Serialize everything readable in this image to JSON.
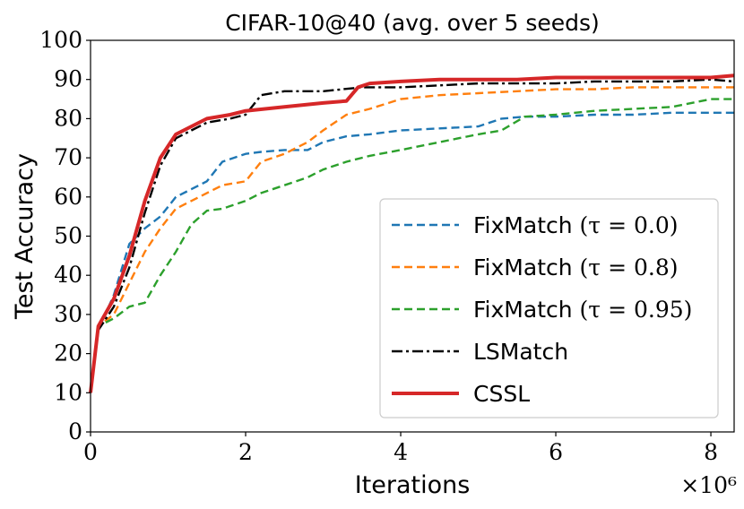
{
  "chart_data": {
    "type": "line",
    "title": "CIFAR-10@40 (avg. over 5 seeds)",
    "xlabel": "Iterations",
    "ylabel": "Test Accuracy",
    "x_multiplier_label": "×10⁶",
    "xlim": [
      0,
      8.3
    ],
    "ylim": [
      0,
      100
    ],
    "xticks": [
      0,
      2,
      4,
      6,
      8
    ],
    "yticks": [
      0,
      10,
      20,
      30,
      40,
      50,
      60,
      70,
      80,
      90,
      100
    ],
    "grid": false,
    "legend_position": "lower-right",
    "series": [
      {
        "name": "FixMatch (τ = 0.0)",
        "label_text": "FixMatch",
        "label_math": "(τ = 0.0)",
        "color": "#1f77b4",
        "style": "dashed",
        "x": [
          0,
          0.1,
          0.3,
          0.5,
          0.7,
          0.9,
          1.1,
          1.3,
          1.5,
          1.7,
          2.0,
          2.2,
          2.5,
          2.8,
          3.0,
          3.3,
          3.6,
          4.0,
          4.5,
          5.0,
          5.3,
          5.6,
          6.0,
          6.5,
          7.0,
          7.5,
          8.0,
          8.3
        ],
        "y": [
          10,
          26,
          35,
          48,
          52,
          55,
          60,
          62,
          64,
          69,
          71,
          71.5,
          72,
          72,
          74,
          75.5,
          76,
          77,
          77.5,
          78,
          80,
          80.5,
          80.5,
          81,
          81,
          81.5,
          81.5,
          81.5
        ]
      },
      {
        "name": "FixMatch (τ = 0.8)",
        "label_text": "FixMatch",
        "label_math": "(τ = 0.8)",
        "color": "#ff7f0e",
        "style": "dashed",
        "x": [
          0,
          0.1,
          0.3,
          0.5,
          0.7,
          0.9,
          1.1,
          1.3,
          1.5,
          1.7,
          2.0,
          2.2,
          2.5,
          2.8,
          3.0,
          3.3,
          3.6,
          4.0,
          4.5,
          5.0,
          5.5,
          6.0,
          6.5,
          7.0,
          7.5,
          8.0,
          8.3
        ],
        "y": [
          10,
          27,
          30,
          38,
          46,
          52,
          57,
          59,
          61,
          63,
          64,
          69,
          71,
          74,
          77,
          81,
          82.5,
          85,
          86,
          86.5,
          87,
          87.5,
          87.5,
          88,
          88,
          88,
          88
        ]
      },
      {
        "name": "FixMatch (τ = 0.95)",
        "label_text": "FixMatch",
        "label_math": "(τ = 0.95)",
        "color": "#2ca02c",
        "style": "dashed",
        "x": [
          0,
          0.1,
          0.3,
          0.5,
          0.7,
          0.9,
          1.1,
          1.3,
          1.5,
          1.7,
          2.0,
          2.2,
          2.5,
          2.8,
          3.0,
          3.3,
          3.6,
          4.0,
          4.5,
          5.0,
          5.3,
          5.6,
          6.0,
          6.5,
          7.0,
          7.5,
          8.0,
          8.3
        ],
        "y": [
          10,
          27,
          29,
          32,
          33,
          40,
          46,
          53,
          56.5,
          57,
          59,
          61,
          63,
          65,
          67,
          69,
          70.5,
          72,
          74,
          76,
          77,
          80.5,
          81,
          82,
          82.5,
          83,
          85,
          85
        ]
      },
      {
        "name": "LSMatch",
        "label_text": "LSMatch",
        "label_math": "",
        "color": "#000000",
        "style": "dashdot",
        "x": [
          0,
          0.1,
          0.3,
          0.5,
          0.7,
          0.9,
          1.1,
          1.3,
          1.5,
          1.8,
          2.0,
          2.2,
          2.5,
          3.0,
          3.5,
          4.0,
          4.5,
          5.0,
          5.5,
          6.0,
          6.5,
          7.0,
          7.5,
          8.0,
          8.3
        ],
        "y": [
          10,
          26,
          32,
          42,
          56,
          68,
          75,
          77,
          79,
          80,
          81,
          86,
          87,
          87,
          88,
          88,
          88.5,
          89,
          89,
          89,
          89.5,
          89.5,
          89.5,
          90,
          89.5
        ]
      },
      {
        "name": "CSSL",
        "label_text": "CSSL",
        "label_math": "",
        "color": "#d62728",
        "style": "solid",
        "x": [
          0,
          0.1,
          0.3,
          0.5,
          0.7,
          0.9,
          1.1,
          1.3,
          1.5,
          1.8,
          2.0,
          2.5,
          3.0,
          3.3,
          3.45,
          3.6,
          4.0,
          4.5,
          5.0,
          5.5,
          6.0,
          6.5,
          7.0,
          7.5,
          8.0,
          8.3
        ],
        "y": [
          10,
          27,
          34,
          45,
          59,
          70,
          76,
          78,
          80,
          81,
          82,
          83,
          84,
          84.5,
          88,
          89,
          89.5,
          90,
          90,
          90,
          90.5,
          90.5,
          90.5,
          90.5,
          90.5,
          91
        ]
      }
    ]
  }
}
